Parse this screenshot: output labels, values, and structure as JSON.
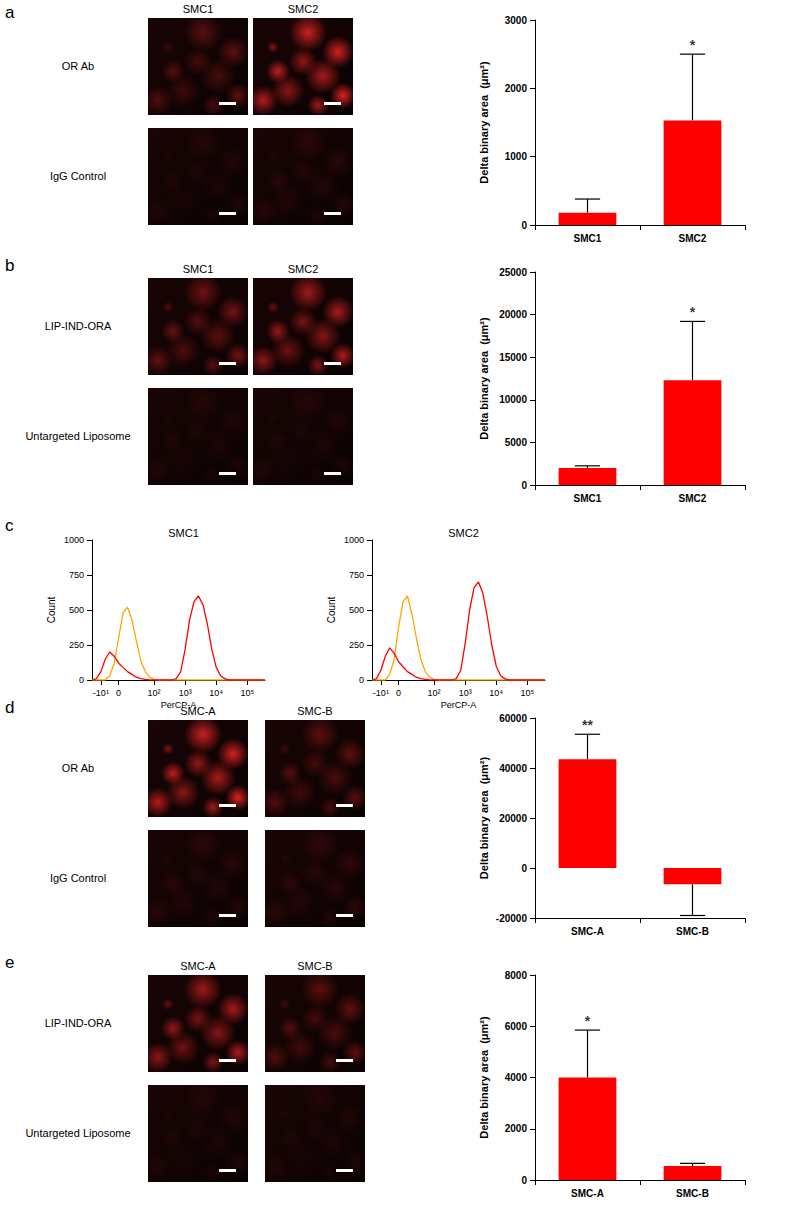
{
  "panel_labels": [
    "a",
    "b",
    "c",
    "d",
    "e"
  ],
  "image_grids": [
    {
      "columns": [
        "SMC1",
        "SMC2"
      ],
      "rows": [
        "OR Ab",
        "IgG Control"
      ]
    },
    {
      "columns": [
        "SMC1",
        "SMC2"
      ],
      "rows": [
        "LIP-IND-ORA",
        "Untargeted Liposome"
      ]
    },
    {
      "columns": [
        "SMC-A",
        "SMC-B"
      ],
      "rows": [
        "OR Ab",
        "IgG Control"
      ]
    },
    {
      "columns": [
        "SMC-A",
        "SMC-B"
      ],
      "rows": [
        "LIP-IND-ORA",
        "Untargeted Liposome"
      ]
    }
  ],
  "chart_data": [
    {
      "type": "bar",
      "y_label": "Delta binary area  (μm²)",
      "categories": [
        "SMC1",
        "SMC2"
      ],
      "values": [
        180,
        1530
      ],
      "errors": [
        200,
        970
      ],
      "color": "#ff0000",
      "ylim": [
        0,
        3000
      ],
      "yticks": [
        0,
        1000,
        2000,
        3000
      ],
      "grid": false,
      "annotations": [
        {
          "text": "*",
          "category": "SMC2"
        }
      ]
    },
    {
      "type": "bar",
      "y_label": "Delta binary area  (μm²)",
      "categories": [
        "SMC1",
        "SMC2"
      ],
      "values": [
        2000,
        12300
      ],
      "errors": [
        250,
        6900
      ],
      "color": "#ff0000",
      "ylim": [
        0,
        25000
      ],
      "yticks": [
        0,
        5000,
        10000,
        15000,
        20000,
        25000
      ],
      "grid": false,
      "annotations": [
        {
          "text": "*",
          "category": "SMC2"
        }
      ]
    },
    {
      "type": "line",
      "title": "SMC1",
      "x_label": "PerCP-A",
      "y_label": "Count",
      "categories": [
        null,
        null,
        "-10¹",
        null,
        null,
        null,
        "0",
        null,
        null,
        null,
        null,
        null,
        null,
        null,
        "10²",
        null,
        null,
        null,
        null,
        null,
        null,
        "10³",
        null,
        null,
        null,
        null,
        null,
        null,
        "10⁴",
        null,
        null,
        null,
        null,
        null,
        null,
        "10⁵",
        null,
        null,
        null,
        null
      ],
      "series": [
        {
          "color": "#ffa500",
          "values": [
            0,
            0,
            0,
            0,
            30,
            120,
            300,
            480,
            520,
            430,
            280,
            140,
            60,
            20,
            5,
            0,
            0,
            0,
            0,
            0,
            0,
            0,
            0,
            0,
            0,
            0,
            0,
            0,
            0,
            0,
            0,
            0,
            0,
            0,
            0,
            0,
            0,
            0,
            0,
            0
          ]
        },
        {
          "color": "#ff0000",
          "values": [
            0,
            10,
            60,
            150,
            200,
            170,
            120,
            90,
            60,
            40,
            20,
            10,
            5,
            0,
            0,
            0,
            0,
            0,
            0,
            10,
            60,
            220,
            430,
            560,
            600,
            540,
            400,
            220,
            90,
            30,
            8,
            0,
            0,
            0,
            0,
            0,
            0,
            0,
            0,
            0
          ]
        }
      ],
      "ylim": [
        0,
        1000
      ],
      "yticks": [
        0,
        250,
        500,
        750,
        1000
      ],
      "grid": false
    },
    {
      "type": "line",
      "title": "SMC2",
      "x_label": "PerCP-A",
      "y_label": "Count",
      "categories": [
        null,
        null,
        "-10¹",
        null,
        null,
        null,
        "0",
        null,
        null,
        null,
        null,
        null,
        null,
        null,
        "10²",
        null,
        null,
        null,
        null,
        null,
        null,
        "10³",
        null,
        null,
        null,
        null,
        null,
        null,
        "10⁴",
        null,
        null,
        null,
        null,
        null,
        null,
        "10⁵",
        null,
        null,
        null,
        null
      ],
      "series": [
        {
          "color": "#ffa500",
          "values": [
            0,
            0,
            0,
            0,
            40,
            150,
            380,
            560,
            600,
            470,
            300,
            150,
            60,
            20,
            5,
            0,
            0,
            0,
            0,
            0,
            0,
            0,
            0,
            0,
            0,
            0,
            0,
            0,
            0,
            0,
            0,
            0,
            0,
            0,
            0,
            0,
            0,
            0,
            0,
            0
          ]
        },
        {
          "color": "#ff0000",
          "values": [
            0,
            10,
            70,
            170,
            230,
            190,
            130,
            95,
            60,
            40,
            20,
            10,
            5,
            0,
            0,
            0,
            0,
            0,
            0,
            10,
            70,
            260,
            500,
            660,
            700,
            620,
            450,
            250,
            100,
            30,
            8,
            0,
            0,
            0,
            0,
            0,
            0,
            0,
            0,
            0
          ]
        }
      ],
      "ylim": [
        0,
        1000
      ],
      "yticks": [
        0,
        250,
        500,
        750,
        1000
      ],
      "grid": false
    },
    {
      "type": "bar",
      "y_label": "Delta binary area  (μm²)",
      "categories": [
        "SMC-A",
        "SMC-B"
      ],
      "values": [
        43500,
        -6500
      ],
      "errors": [
        10000,
        12500
      ],
      "color": "#ff0000",
      "ylim": [
        -20000,
        60000
      ],
      "yticks": [
        -20000,
        0,
        20000,
        40000,
        60000
      ],
      "grid": false,
      "annotations": [
        {
          "text": "**",
          "category": "SMC-A"
        }
      ]
    },
    {
      "type": "bar",
      "y_label": "Delta binary area  (μm²)",
      "categories": [
        "SMC-A",
        "SMC-B"
      ],
      "values": [
        4000,
        550
      ],
      "errors": [
        1850,
        100
      ],
      "color": "#ff0000",
      "ylim": [
        0,
        8000
      ],
      "yticks": [
        0,
        2000,
        4000,
        6000,
        8000
      ],
      "grid": false,
      "annotations": [
        {
          "text": "*",
          "category": "SMC-A"
        }
      ]
    }
  ]
}
